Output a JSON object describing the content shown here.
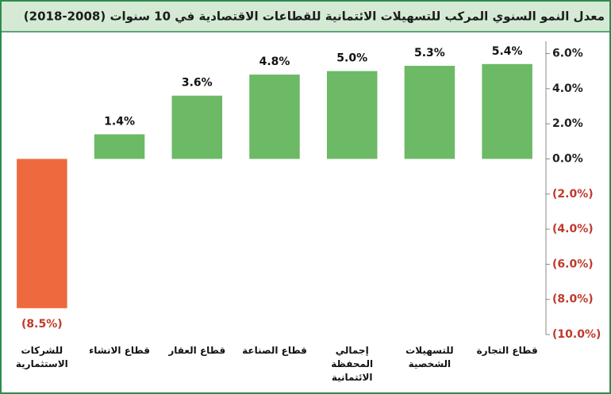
{
  "chart_data": {
    "type": "bar",
    "title": "معدل النمو السنوي المركب للتسهيلات الائتمانية للقطاعات الاقتصادية في 10 سنوات (2008-2018)",
    "categories": [
      "للشركات الاستثمارية",
      "قطاع الانشاء",
      "قطاع العقار",
      "قطاع الصناعة",
      "إجمالي المحفظة الائتمانية",
      "للتسهيلات الشخصية",
      "قطاع التجارة"
    ],
    "values": [
      -8.5,
      1.4,
      3.6,
      4.8,
      5.0,
      5.3,
      5.4
    ],
    "value_labels": [
      "(8.5%)",
      "1.4%",
      "3.6%",
      "4.8%",
      "5.0%",
      "5.3%",
      "5.4%"
    ],
    "color": "#6cb966",
    "negative_color": "#ee6a3e",
    "ylim": [
      -10,
      6.7
    ],
    "yticks": [
      {
        "value": 6,
        "label": "6.0%"
      },
      {
        "value": 4,
        "label": "4.0%"
      },
      {
        "value": 2,
        "label": "2.0%"
      },
      {
        "value": 0,
        "label": "0.0%"
      },
      {
        "value": -2,
        "label": "(2.0%)"
      },
      {
        "value": -4,
        "label": "(4.0%)"
      },
      {
        "value": -6,
        "label": "(6.0%)"
      },
      {
        "value": -8,
        "label": "(8.0%)"
      },
      {
        "value": -10,
        "label": "(10.0%)"
      }
    ],
    "y_axis_side": "right",
    "grid": false
  }
}
